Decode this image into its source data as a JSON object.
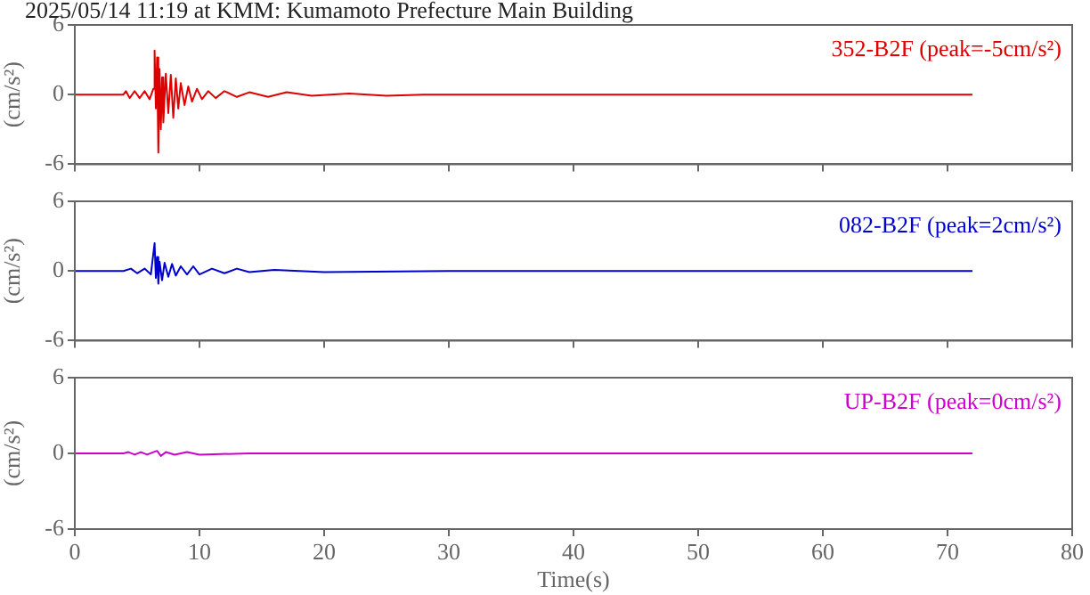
{
  "chart_data": [
    {
      "type": "line",
      "title": "2025/05/14 11:19 at KMM: Kumamoto Prefecture Main Building",
      "ylabel": "(cm/s²)",
      "xlim": [
        0,
        80
      ],
      "xticks": [
        0,
        10,
        20,
        30,
        40,
        50,
        60,
        70,
        80
      ],
      "ylim": [
        -6,
        6
      ],
      "yticks": [
        -6,
        0,
        6
      ],
      "tick_labels": "y",
      "grid": false,
      "marker": "none",
      "x": [
        0,
        3.9,
        4.1,
        4.4,
        4.8,
        5.2,
        5.6,
        6.0,
        6.3,
        6.4,
        6.5,
        6.6,
        6.7,
        6.8,
        6.9,
        7.0,
        7.1,
        7.3,
        7.5,
        7.7,
        7.9,
        8.1,
        8.3,
        8.5,
        8.8,
        9.1,
        9.4,
        9.8,
        10.2,
        10.7,
        11.3,
        12,
        13,
        14,
        15.5,
        17,
        19,
        22,
        25,
        28,
        72
      ],
      "series": [
        {
          "name": "352-B2F (peak=-5cm/s²)",
          "color": "#dd0000",
          "values": [
            0,
            0,
            0.3,
            -0.3,
            0.3,
            -0.3,
            0.3,
            -0.4,
            0.5,
            3.8,
            -1.2,
            3.2,
            -5,
            2.2,
            -3,
            1.5,
            -2.4,
            1.8,
            -1.6,
            1.7,
            -2,
            1.4,
            -1.2,
            1,
            -0.9,
            0.7,
            -0.6,
            0.5,
            -0.4,
            0.3,
            -0.3,
            0.3,
            -0.2,
            0.2,
            -0.2,
            0.2,
            -0.1,
            0.1,
            -0.1,
            0,
            0
          ]
        }
      ]
    },
    {
      "type": "line",
      "ylabel": "(cm/s²)",
      "xlim": [
        0,
        80
      ],
      "xticks": [
        0,
        10,
        20,
        30,
        40,
        50,
        60,
        70,
        80
      ],
      "ylim": [
        -6,
        6
      ],
      "yticks": [
        -6,
        0,
        6
      ],
      "tick_labels": "y",
      "grid": false,
      "marker": "none",
      "x": [
        0,
        3.9,
        4.5,
        5,
        5.6,
        6.1,
        6.4,
        6.5,
        6.6,
        6.7,
        6.8,
        7,
        7.2,
        7.5,
        7.8,
        8.1,
        8.5,
        9,
        9.5,
        10,
        11,
        12,
        13,
        14,
        16,
        20,
        30,
        72
      ],
      "series": [
        {
          "name": "082-B2F (peak=2cm/s²)",
          "color": "#0000cc",
          "values": [
            0,
            0,
            0.2,
            -0.2,
            0.2,
            -0.3,
            2.4,
            -0.6,
            1.2,
            -1.1,
            0.8,
            -0.8,
            0.7,
            -0.5,
            0.6,
            -0.4,
            0.4,
            -0.3,
            0.4,
            -0.3,
            0.2,
            -0.2,
            0.2,
            -0.1,
            0.1,
            -0.1,
            0,
            0
          ]
        }
      ]
    },
    {
      "type": "line",
      "ylabel": "(cm/s²)",
      "xlabel": "Time(s)",
      "xlim": [
        0,
        80
      ],
      "xticks": [
        0,
        10,
        20,
        30,
        40,
        50,
        60,
        70,
        80
      ],
      "ylim": [
        -6,
        6
      ],
      "yticks": [
        -6,
        0,
        6
      ],
      "grid": false,
      "marker": "none",
      "x": [
        0,
        3.9,
        4.3,
        4.8,
        5.3,
        5.8,
        6.3,
        6.6,
        6.9,
        7.3,
        8,
        9,
        10,
        14,
        72
      ],
      "series": [
        {
          "name": "UP-B2F (peak=0cm/s²)",
          "color": "#cc00cc",
          "values": [
            0,
            0,
            0.1,
            -0.1,
            0.1,
            -0.1,
            0.1,
            0.2,
            -0.2,
            0.1,
            -0.1,
            0.1,
            -0.1,
            0,
            0
          ]
        }
      ]
    }
  ]
}
